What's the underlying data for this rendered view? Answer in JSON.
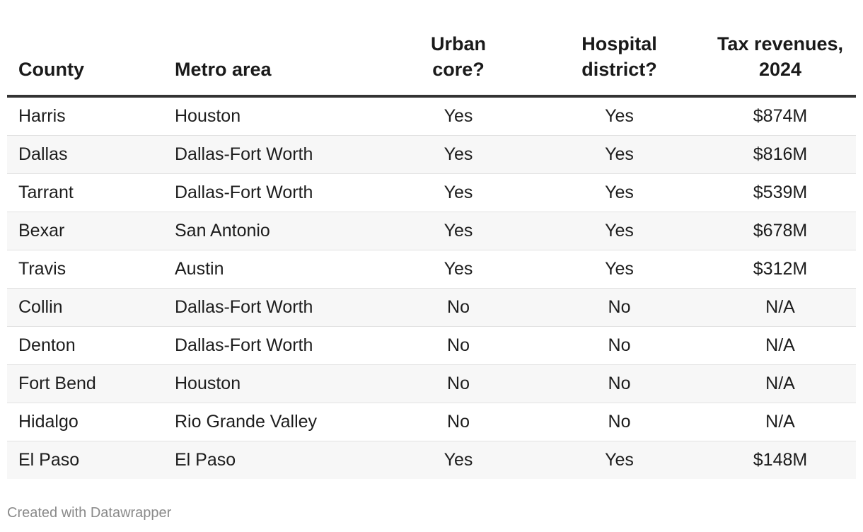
{
  "chart_data": {
    "type": "table",
    "columns": [
      "County",
      "Metro area",
      "Urban core?",
      "Hospital district?",
      "Tax revenues, 2024"
    ],
    "rows": [
      [
        "Harris",
        "Houston",
        "Yes",
        "Yes",
        "$874M"
      ],
      [
        "Dallas",
        "Dallas-Fort Worth",
        "Yes",
        "Yes",
        "$816M"
      ],
      [
        "Tarrant",
        "Dallas-Fort Worth",
        "Yes",
        "Yes",
        "$539M"
      ],
      [
        "Bexar",
        "San Antonio",
        "Yes",
        "Yes",
        "$678M"
      ],
      [
        "Travis",
        "Austin",
        "Yes",
        "Yes",
        "$312M"
      ],
      [
        "Collin",
        "Dallas-Fort Worth",
        "No",
        "No",
        "N/A"
      ],
      [
        "Denton",
        "Dallas-Fort Worth",
        "No",
        "No",
        "N/A"
      ],
      [
        "Fort Bend",
        "Houston",
        "No",
        "No",
        "N/A"
      ],
      [
        "Hidalgo",
        "Rio Grande Valley",
        "No",
        "No",
        "N/A"
      ],
      [
        "El Paso",
        "El Paso",
        "Yes",
        "Yes",
        "$148M"
      ]
    ]
  },
  "header": {
    "county": "County",
    "metro": "Metro area",
    "urban_line1": "Urban",
    "urban_line2": "core?",
    "hospital_line1": "Hospital",
    "hospital_line2": "district?",
    "tax_line1": "Tax revenues,",
    "tax_line2": "2024"
  },
  "footer": {
    "credit": "Created with Datawrapper"
  }
}
